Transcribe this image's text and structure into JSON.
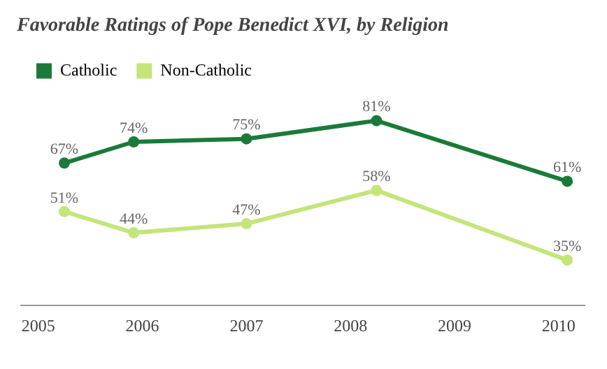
{
  "chart_data": {
    "type": "line",
    "title": "Favorable Ratings of Pope Benedict XVI, by Religion",
    "x": [
      "2005-04",
      "2005-12",
      "2007-01",
      "2008-04",
      "2010-02"
    ],
    "series": [
      {
        "name": "Catholic",
        "color": "#1b7a3a",
        "values": [
          67,
          74,
          75,
          81,
          61
        ],
        "value_labels": [
          "67%",
          "74%",
          "75%",
          "81%",
          "61%"
        ]
      },
      {
        "name": "Non-Catholic",
        "color": "#c3e57a",
        "values": [
          51,
          44,
          47,
          58,
          35
        ],
        "value_labels": [
          "51%",
          "44%",
          "47%",
          "58%",
          "35%"
        ]
      }
    ],
    "xlim": [
      "2004-11",
      "2010-04"
    ],
    "xticks": [
      "2005",
      "2006",
      "2007",
      "2008",
      "2009",
      "2010"
    ],
    "tick_labels": "x",
    "legend": "top left",
    "marker": "circle",
    "line_style": "solid",
    "grid": false
  }
}
